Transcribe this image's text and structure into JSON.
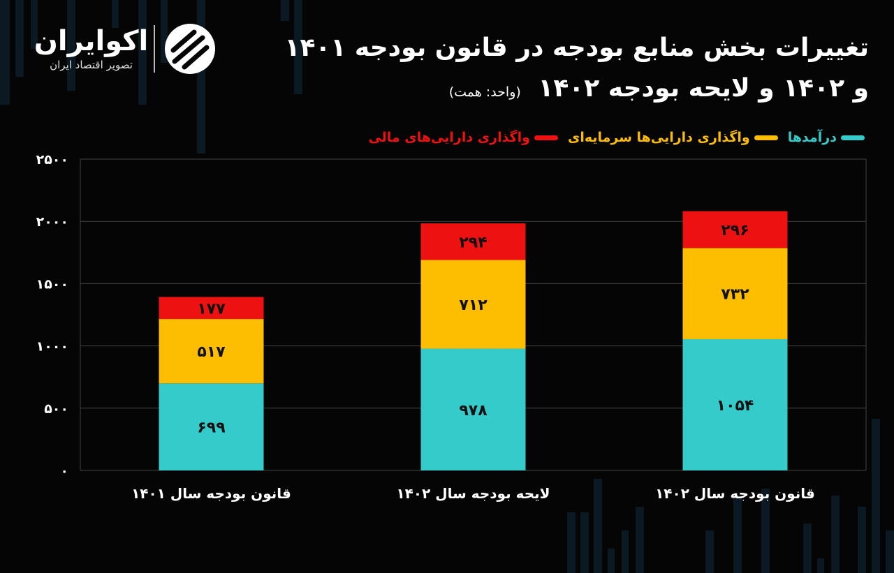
{
  "logo": {
    "name": "اکوایران",
    "tagline": "تصویر اقتصاد ایران"
  },
  "title": {
    "line1": "تغییرات بخش منابع بودجه در قانون بودجه ۱۴۰۱",
    "line2": "و ۱۴۰۲ و لایحه بودجه ۱۴۰۲",
    "unit": "(واحد: همت)"
  },
  "colors": {
    "background": "#050505",
    "revenue": "#36cbcb",
    "capital_assets": "#fdbd00",
    "financial_assets": "#ee1111",
    "text": "#ffffff",
    "grid": "#444444"
  },
  "chart_data": {
    "type": "bar",
    "stacked": true,
    "categories": [
      "قانون بودجه سال ۱۴۰۱",
      "لایحه بودجه سال ۱۴۰۲",
      "قانون بودجه سال ۱۴۰۲"
    ],
    "series": [
      {
        "name": "درآمدها",
        "color": "#36cbcb",
        "values": [
          699,
          978,
          1054
        ],
        "labels": [
          "۶۹۹",
          "۹۷۸",
          "۱۰۵۴"
        ]
      },
      {
        "name": "واگذاری دارایی‌ها سرمایه‌ای",
        "color": "#fdbd00",
        "values": [
          517,
          712,
          732
        ],
        "labels": [
          "۵۱۷",
          "۷۱۲",
          "۷۳۲"
        ]
      },
      {
        "name": "واگذاری دارایی‌های مالی",
        "color": "#ee1111",
        "values": [
          177,
          294,
          296
        ],
        "labels": [
          "۱۷۷",
          "۲۹۴",
          "۲۹۶"
        ]
      }
    ],
    "ylim": [
      0,
      2500
    ],
    "yticks": [
      0,
      500,
      1000,
      1500,
      2000,
      2500
    ],
    "ytick_labels": [
      "۰",
      "۵۰۰",
      "۱۰۰۰",
      "۱۵۰۰",
      "۲۰۰۰",
      "۲۵۰۰"
    ],
    "grid": true,
    "legend_position": "top-right"
  }
}
